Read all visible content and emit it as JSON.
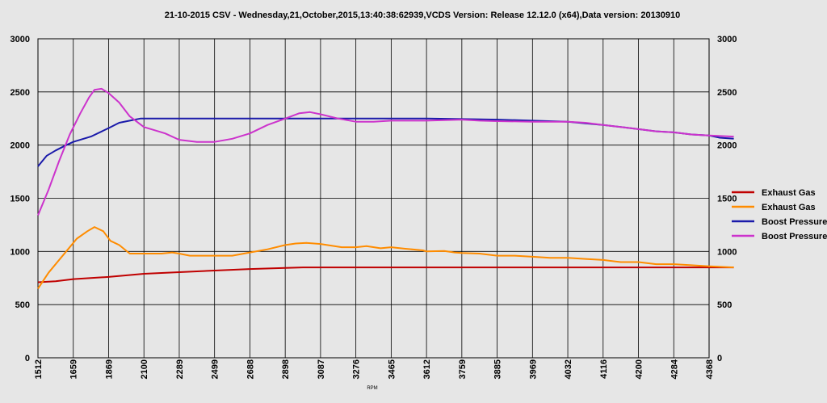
{
  "chart_data": {
    "type": "line",
    "title": "21-10-2015 CSV - Wednesday,21,October,2015,13:40:38:62939,VCDS Version: Release 12.12.0 (x64),Data version: 20130910",
    "xlabel": "RPM",
    "ylabel": "",
    "ylim": [
      0,
      3000
    ],
    "yticks": [
      0,
      500,
      1000,
      1500,
      2000,
      2500,
      3000
    ],
    "x_tick_labels": [
      "1512",
      "1659",
      "1869",
      "2100",
      "2289",
      "2499",
      "2688",
      "2898",
      "3087",
      "3276",
      "3465",
      "3612",
      "3759",
      "3885",
      "3969",
      "4032",
      "4116",
      "4200",
      "4284",
      "4368"
    ],
    "grid": true,
    "legend_position": "right",
    "series": [
      {
        "name": "Exhaust Gas",
        "color": "#c00000",
        "values": [
          [
            0,
            710
          ],
          [
            0.5,
            720
          ],
          [
            1,
            740
          ],
          [
            2,
            760
          ],
          [
            3,
            790
          ],
          [
            4,
            805
          ],
          [
            5,
            820
          ],
          [
            6,
            835
          ],
          [
            7,
            845
          ],
          [
            7.5,
            850
          ],
          [
            8,
            850
          ],
          [
            9,
            850
          ],
          [
            10,
            850
          ],
          [
            11,
            850
          ],
          [
            12,
            850
          ],
          [
            13,
            850
          ],
          [
            14,
            850
          ],
          [
            15,
            850
          ],
          [
            16,
            850
          ],
          [
            17,
            850
          ],
          [
            18,
            850
          ],
          [
            19,
            850
          ],
          [
            19.7,
            850
          ]
        ]
      },
      {
        "name": "Exhaust Gas",
        "color": "#ff8c00",
        "values": [
          [
            0,
            650
          ],
          [
            0.3,
            800
          ],
          [
            0.6,
            920
          ],
          [
            0.85,
            1020
          ],
          [
            1.1,
            1120
          ],
          [
            1.4,
            1190
          ],
          [
            1.6,
            1230
          ],
          [
            1.85,
            1190
          ],
          [
            2.05,
            1100
          ],
          [
            2.3,
            1060
          ],
          [
            2.6,
            980
          ],
          [
            3,
            980
          ],
          [
            3.5,
            980
          ],
          [
            3.8,
            990
          ],
          [
            4,
            980
          ],
          [
            4.3,
            960
          ],
          [
            5,
            960
          ],
          [
            5.5,
            960
          ],
          [
            6,
            990
          ],
          [
            6.5,
            1020
          ],
          [
            7,
            1060
          ],
          [
            7.3,
            1075
          ],
          [
            7.6,
            1080
          ],
          [
            8,
            1070
          ],
          [
            8.6,
            1040
          ],
          [
            9,
            1040
          ],
          [
            9.3,
            1050
          ],
          [
            9.7,
            1030
          ],
          [
            10,
            1040
          ],
          [
            10.4,
            1025
          ],
          [
            10.9,
            1010
          ],
          [
            11,
            1000
          ],
          [
            11.5,
            1005
          ],
          [
            11.8,
            990
          ],
          [
            12,
            985
          ],
          [
            12.5,
            980
          ],
          [
            13,
            960
          ],
          [
            13.5,
            960
          ],
          [
            14,
            950
          ],
          [
            14.5,
            940
          ],
          [
            15,
            940
          ],
          [
            15.5,
            930
          ],
          [
            16,
            920
          ],
          [
            16.5,
            900
          ],
          [
            17,
            900
          ],
          [
            17.5,
            880
          ],
          [
            18,
            880
          ],
          [
            18.5,
            870
          ],
          [
            19,
            860
          ],
          [
            19.7,
            850
          ]
        ]
      },
      {
        "name": "Boost Pressure",
        "color": "#1a1aaa",
        "values": [
          [
            0,
            1800
          ],
          [
            0.25,
            1900
          ],
          [
            0.5,
            1950
          ],
          [
            0.8,
            2000
          ],
          [
            1,
            2030
          ],
          [
            1.5,
            2080
          ],
          [
            2,
            2160
          ],
          [
            2.3,
            2210
          ],
          [
            2.6,
            2230
          ],
          [
            2.9,
            2250
          ],
          [
            3,
            2250
          ],
          [
            5,
            2250
          ],
          [
            7,
            2250
          ],
          [
            8,
            2250
          ],
          [
            9,
            2250
          ],
          [
            11,
            2250
          ],
          [
            12,
            2245
          ],
          [
            13,
            2240
          ],
          [
            14,
            2230
          ],
          [
            15,
            2220
          ],
          [
            15.5,
            2205
          ],
          [
            16,
            2190
          ],
          [
            16.5,
            2170
          ],
          [
            17,
            2150
          ],
          [
            17.5,
            2130
          ],
          [
            18,
            2120
          ],
          [
            18.5,
            2100
          ],
          [
            19,
            2090
          ],
          [
            19.3,
            2070
          ],
          [
            19.7,
            2060
          ]
        ]
      },
      {
        "name": "Boost Pressure",
        "color": "#cc33cc",
        "values": [
          [
            0,
            1340
          ],
          [
            0.3,
            1580
          ],
          [
            0.6,
            1850
          ],
          [
            0.9,
            2100
          ],
          [
            1.2,
            2300
          ],
          [
            1.45,
            2450
          ],
          [
            1.6,
            2520
          ],
          [
            1.8,
            2530
          ],
          [
            2,
            2490
          ],
          [
            2.3,
            2400
          ],
          [
            2.6,
            2270
          ],
          [
            3,
            2170
          ],
          [
            3.3,
            2140
          ],
          [
            3.6,
            2110
          ],
          [
            4,
            2050
          ],
          [
            4.5,
            2030
          ],
          [
            5,
            2030
          ],
          [
            5.5,
            2060
          ],
          [
            6,
            2110
          ],
          [
            6.5,
            2190
          ],
          [
            7,
            2250
          ],
          [
            7.4,
            2300
          ],
          [
            7.7,
            2310
          ],
          [
            8,
            2290
          ],
          [
            8.5,
            2250
          ],
          [
            9,
            2220
          ],
          [
            9.5,
            2220
          ],
          [
            10,
            2230
          ],
          [
            10.5,
            2230
          ],
          [
            11,
            2230
          ],
          [
            11.5,
            2235
          ],
          [
            12,
            2240
          ],
          [
            12.5,
            2230
          ],
          [
            13,
            2225
          ],
          [
            14,
            2220
          ],
          [
            15,
            2220
          ],
          [
            15.5,
            2210
          ],
          [
            16,
            2190
          ],
          [
            16.5,
            2170
          ],
          [
            17,
            2150
          ],
          [
            17.5,
            2130
          ],
          [
            18,
            2120
          ],
          [
            18.5,
            2100
          ],
          [
            19,
            2090
          ],
          [
            19.7,
            2080
          ]
        ]
      }
    ]
  }
}
